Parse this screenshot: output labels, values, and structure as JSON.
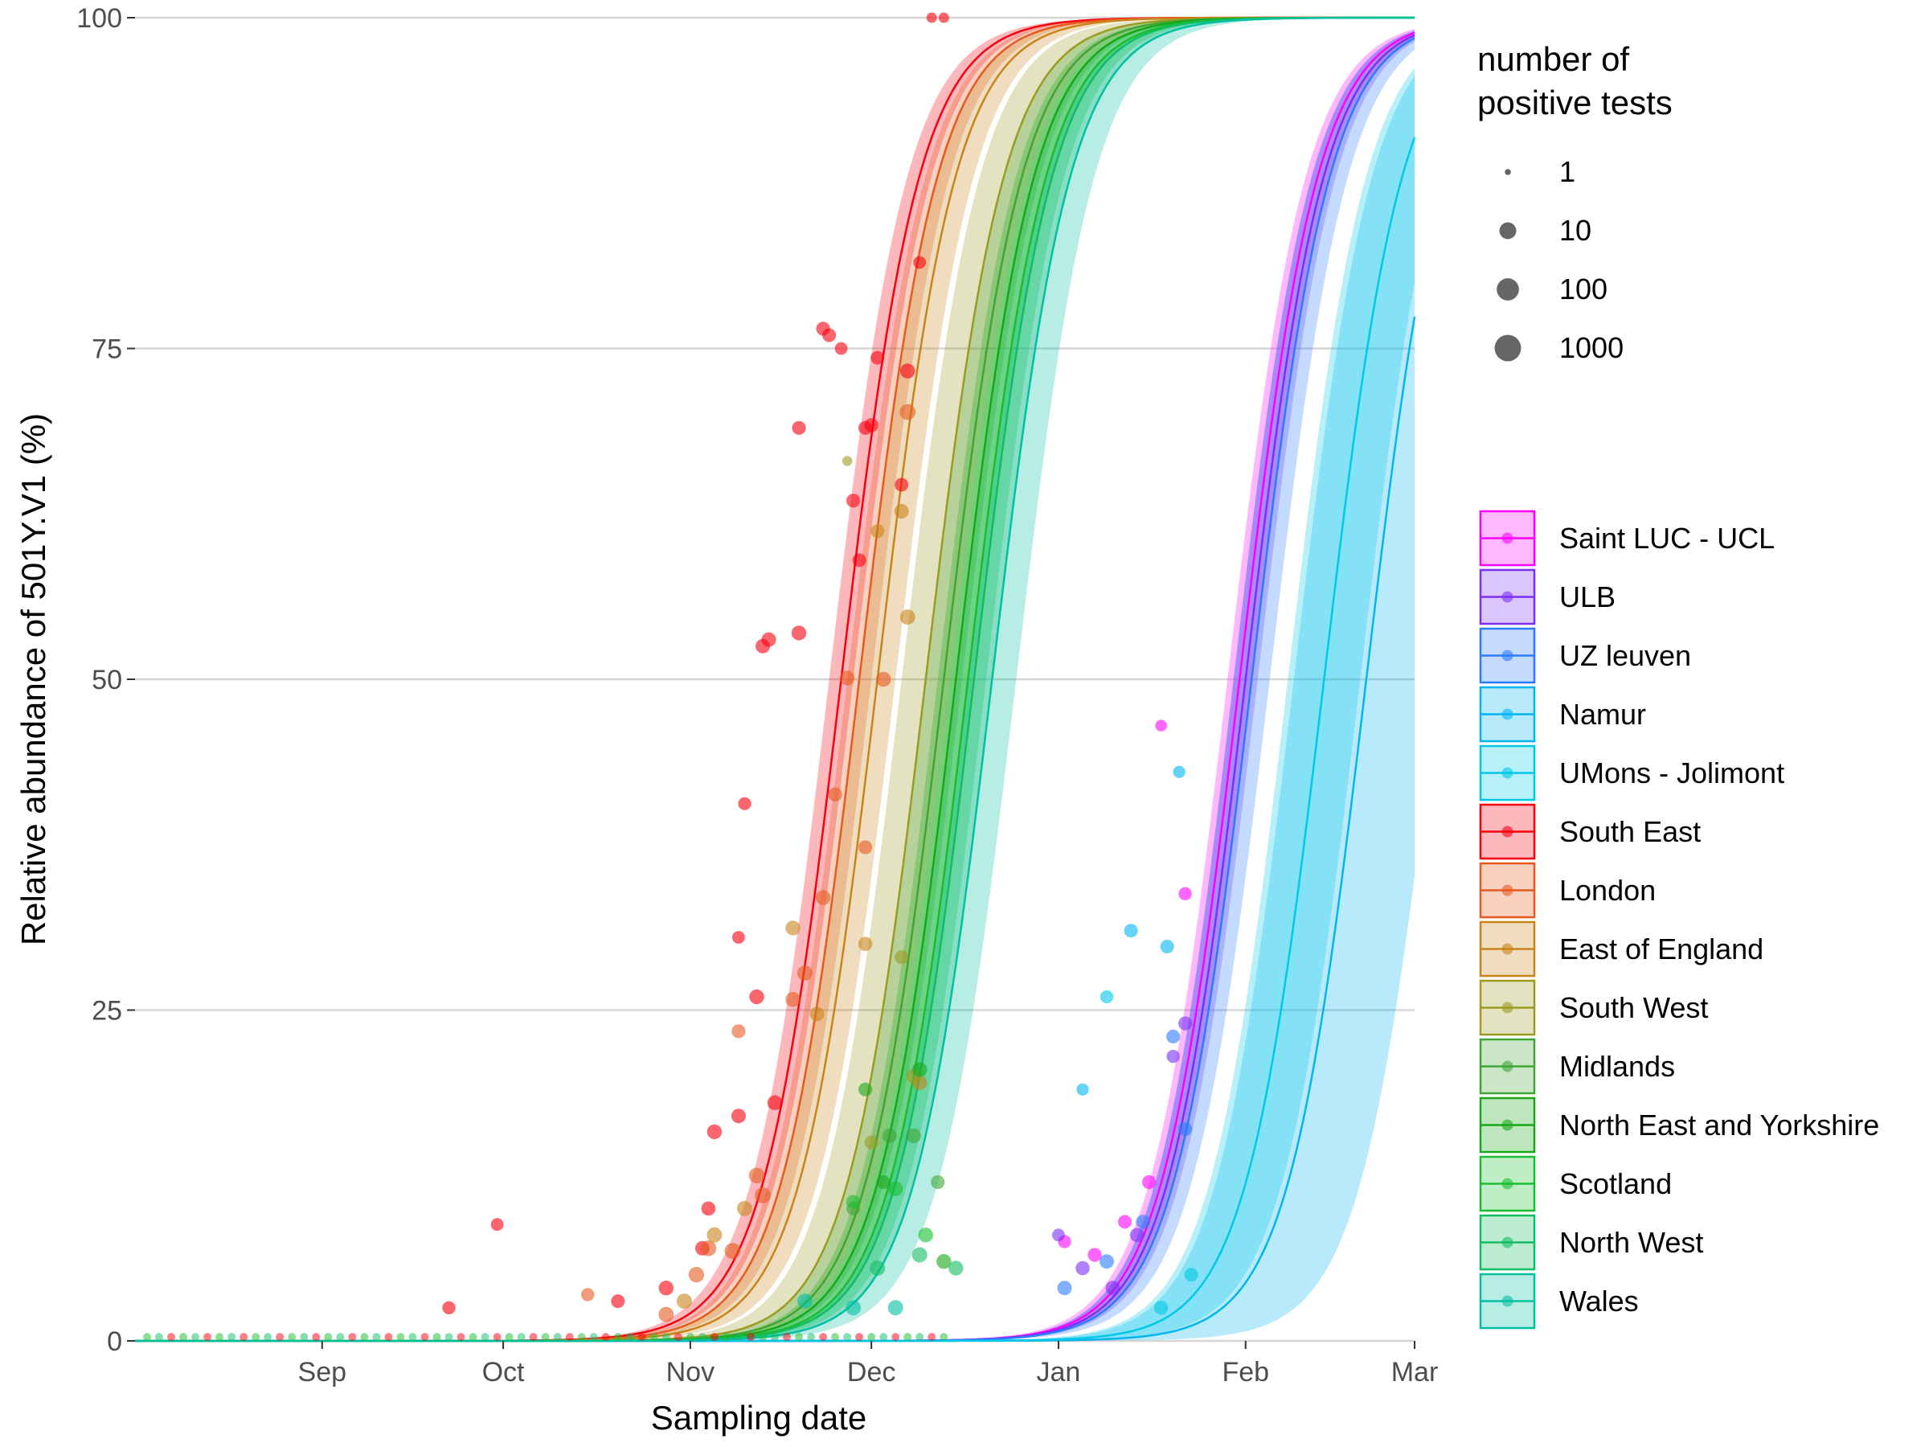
{
  "chart_data": {
    "type": "line",
    "title": "",
    "xlabel": "Sampling date",
    "ylabel": "Relative abundance of 501Y.V1 (%)",
    "x_ticks": [
      "Sep",
      "Oct",
      "Nov",
      "Dec",
      "Jan",
      "Feb",
      "Mar"
    ],
    "x_tick_dates": [
      "2020-09-01",
      "2020-10-01",
      "2020-11-01",
      "2020-12-01",
      "2021-01-01",
      "2021-02-01",
      "2021-03-01"
    ],
    "xlim": [
      "2020-08-01",
      "2021-03-01"
    ],
    "y_ticks": [
      "0",
      "25",
      "50",
      "75",
      "100"
    ],
    "ylim": [
      0,
      100
    ],
    "grid": "horizontal",
    "size_legend": {
      "title_line1": "number of",
      "title_line2": "positive tests",
      "labels": [
        "1",
        "10",
        "100",
        "1000"
      ]
    },
    "series": [
      {
        "name": "Saint LUC - UCL",
        "color": "#FF00FF",
        "midpoint_date": "2021-01-31",
        "band_days": 2
      },
      {
        "name": "ULB",
        "color": "#7B2FF7",
        "midpoint_date": "2021-02-01",
        "band_days": 2
      },
      {
        "name": "UZ leuven",
        "color": "#2C7BFF",
        "midpoint_date": "2021-02-02",
        "band_days": 3
      },
      {
        "name": "Namur",
        "color": "#00B5F0",
        "midpoint_date": "2021-02-21",
        "band_days": 12
      },
      {
        "name": "UMons - Jolimont",
        "color": "#00C8E8",
        "midpoint_date": "2021-02-14",
        "band_days": 6
      },
      {
        "name": "South East",
        "color": "#F8000D",
        "midpoint_date": "2020-11-26",
        "band_days": 2
      },
      {
        "name": "London",
        "color": "#E65A1E",
        "midpoint_date": "2020-11-29",
        "band_days": 2
      },
      {
        "name": "East of England",
        "color": "#C88418",
        "midpoint_date": "2020-12-02",
        "band_days": 3
      },
      {
        "name": "South West",
        "color": "#9C9B20",
        "midpoint_date": "2020-12-10",
        "band_days": 4
      },
      {
        "name": "Midlands",
        "color": "#3FA535",
        "midpoint_date": "2020-12-13",
        "band_days": 3
      },
      {
        "name": "North East and Yorkshire",
        "color": "#17A817",
        "midpoint_date": "2020-12-15",
        "band_days": 3
      },
      {
        "name": "Scotland",
        "color": "#19BE2E",
        "midpoint_date": "2020-12-17",
        "band_days": 3
      },
      {
        "name": "North West",
        "color": "#10BD62",
        "midpoint_date": "2020-12-18",
        "band_days": 3
      },
      {
        "name": "Wales",
        "color": "#00C0A0",
        "midpoint_date": "2020-12-21",
        "band_days": 4
      }
    ],
    "points": [
      {
        "series": "South East",
        "date": "2020-09-22",
        "y": 2.5,
        "n": 60
      },
      {
        "series": "South East",
        "date": "2020-09-30",
        "y": 8.8,
        "n": 40
      },
      {
        "series": "South East",
        "date": "2020-10-20",
        "y": 3.0,
        "n": 80
      },
      {
        "series": "South East",
        "date": "2020-10-28",
        "y": 4.0,
        "n": 200
      },
      {
        "series": "South East",
        "date": "2020-11-03",
        "y": 7.0,
        "n": 150
      },
      {
        "series": "South East",
        "date": "2020-11-04",
        "y": 10.0,
        "n": 120
      },
      {
        "series": "South East",
        "date": "2020-11-05",
        "y": 15.8,
        "n": 220
      },
      {
        "series": "South East",
        "date": "2020-11-09",
        "y": 17.0,
        "n": 150
      },
      {
        "series": "South East",
        "date": "2020-11-09",
        "y": 30.5,
        "n": 40
      },
      {
        "series": "South East",
        "date": "2020-11-10",
        "y": 40.6,
        "n": 50
      },
      {
        "series": "South East",
        "date": "2020-11-12",
        "y": 26.0,
        "n": 200
      },
      {
        "series": "South East",
        "date": "2020-11-13",
        "y": 52.5,
        "n": 150
      },
      {
        "series": "South East",
        "date": "2020-11-14",
        "y": 53.0,
        "n": 160
      },
      {
        "series": "South East",
        "date": "2020-11-15",
        "y": 18.0,
        "n": 220
      },
      {
        "series": "South East",
        "date": "2020-11-19",
        "y": 53.5,
        "n": 200
      },
      {
        "series": "South East",
        "date": "2020-11-19",
        "y": 69.0,
        "n": 100
      },
      {
        "series": "South East",
        "date": "2020-11-23",
        "y": 76.5,
        "n": 100
      },
      {
        "series": "South East",
        "date": "2020-11-24",
        "y": 76.0,
        "n": 80
      },
      {
        "series": "South East",
        "date": "2020-11-26",
        "y": 75.0,
        "n": 40
      },
      {
        "series": "South East",
        "date": "2020-11-28",
        "y": 63.5,
        "n": 100
      },
      {
        "series": "South East",
        "date": "2020-11-29",
        "y": 59.0,
        "n": 80
      },
      {
        "series": "South East",
        "date": "2020-11-30",
        "y": 69.0,
        "n": 100
      },
      {
        "series": "South East",
        "date": "2020-12-01",
        "y": 69.2,
        "n": 120
      },
      {
        "series": "South East",
        "date": "2020-12-02",
        "y": 74.3,
        "n": 80
      },
      {
        "series": "South East",
        "date": "2020-12-06",
        "y": 64.7,
        "n": 80
      },
      {
        "series": "South East",
        "date": "2020-12-07",
        "y": 73.3,
        "n": 250
      },
      {
        "series": "South East",
        "date": "2020-12-09",
        "y": 81.5,
        "n": 40
      },
      {
        "series": "South East",
        "date": "2020-12-11",
        "y": 100.0,
        "n": 10
      },
      {
        "series": "South East",
        "date": "2020-12-13",
        "y": 100.0,
        "n": 10
      },
      {
        "series": "London",
        "date": "2020-10-15",
        "y": 3.5,
        "n": 60
      },
      {
        "series": "London",
        "date": "2020-10-28",
        "y": 2.0,
        "n": 300
      },
      {
        "series": "London",
        "date": "2020-11-02",
        "y": 5.0,
        "n": 400
      },
      {
        "series": "London",
        "date": "2020-11-04",
        "y": 7.0,
        "n": 500
      },
      {
        "series": "London",
        "date": "2020-11-08",
        "y": 6.8,
        "n": 600
      },
      {
        "series": "London",
        "date": "2020-11-09",
        "y": 23.4,
        "n": 100
      },
      {
        "series": "London",
        "date": "2020-11-12",
        "y": 12.5,
        "n": 500
      },
      {
        "series": "London",
        "date": "2020-11-13",
        "y": 11.0,
        "n": 600
      },
      {
        "series": "London",
        "date": "2020-11-18",
        "y": 25.8,
        "n": 200
      },
      {
        "series": "London",
        "date": "2020-11-20",
        "y": 27.8,
        "n": 300
      },
      {
        "series": "London",
        "date": "2020-11-23",
        "y": 33.5,
        "n": 200
      },
      {
        "series": "London",
        "date": "2020-11-25",
        "y": 41.3,
        "n": 120
      },
      {
        "series": "London",
        "date": "2020-11-27",
        "y": 50.1,
        "n": 200
      },
      {
        "series": "London",
        "date": "2020-11-30",
        "y": 37.3,
        "n": 100
      },
      {
        "series": "London",
        "date": "2020-12-03",
        "y": 50.0,
        "n": 250
      },
      {
        "series": "London",
        "date": "2020-12-07",
        "y": 70.2,
        "n": 600
      },
      {
        "series": "East of England",
        "date": "2020-10-31",
        "y": 3.0,
        "n": 300
      },
      {
        "series": "East of England",
        "date": "2020-11-05",
        "y": 8.0,
        "n": 300
      },
      {
        "series": "East of England",
        "date": "2020-11-10",
        "y": 10.0,
        "n": 300
      },
      {
        "series": "East of England",
        "date": "2020-11-18",
        "y": 31.2,
        "n": 200
      },
      {
        "series": "East of England",
        "date": "2020-11-22",
        "y": 24.7,
        "n": 150
      },
      {
        "series": "East of England",
        "date": "2020-11-30",
        "y": 30.0,
        "n": 120
      },
      {
        "series": "East of England",
        "date": "2020-12-02",
        "y": 61.2,
        "n": 100
      },
      {
        "series": "East of England",
        "date": "2020-12-06",
        "y": 62.7,
        "n": 180
      },
      {
        "series": "East of England",
        "date": "2020-12-07",
        "y": 54.7,
        "n": 300
      },
      {
        "series": "East of England",
        "date": "2020-12-09",
        "y": 19.5,
        "n": 200
      },
      {
        "series": "South West",
        "date": "2020-11-27",
        "y": 66.5,
        "n": 8
      },
      {
        "series": "South West",
        "date": "2020-12-06",
        "y": 29.0,
        "n": 100
      },
      {
        "series": "South West",
        "date": "2020-12-08",
        "y": 20.0,
        "n": 200
      },
      {
        "series": "South West",
        "date": "2020-12-01",
        "y": 15.0,
        "n": 100
      },
      {
        "series": "Midlands",
        "date": "2020-11-28",
        "y": 10.0,
        "n": 100
      },
      {
        "series": "Midlands",
        "date": "2020-12-04",
        "y": 15.5,
        "n": 150
      },
      {
        "series": "Midlands",
        "date": "2020-12-08",
        "y": 15.5,
        "n": 200
      },
      {
        "series": "Midlands",
        "date": "2020-12-12",
        "y": 12.0,
        "n": 100
      },
      {
        "series": "North East and Yorkshire",
        "date": "2020-11-30",
        "y": 19.0,
        "n": 80
      },
      {
        "series": "North East and Yorkshire",
        "date": "2020-12-03",
        "y": 12.0,
        "n": 100
      },
      {
        "series": "North East and Yorkshire",
        "date": "2020-12-09",
        "y": 20.5,
        "n": 200
      },
      {
        "series": "North East and Yorkshire",
        "date": "2020-12-13",
        "y": 6.0,
        "n": 200
      },
      {
        "series": "Scotland",
        "date": "2020-11-28",
        "y": 10.5,
        "n": 100
      },
      {
        "series": "Scotland",
        "date": "2020-12-05",
        "y": 11.5,
        "n": 200
      },
      {
        "series": "Scotland",
        "date": "2020-12-10",
        "y": 8.0,
        "n": 200
      },
      {
        "series": "North West",
        "date": "2020-12-02",
        "y": 5.5,
        "n": 300
      },
      {
        "series": "North West",
        "date": "2020-12-09",
        "y": 6.5,
        "n": 300
      },
      {
        "series": "North West",
        "date": "2020-12-15",
        "y": 5.5,
        "n": 200
      },
      {
        "series": "Wales",
        "date": "2020-11-20",
        "y": 3.0,
        "n": 300
      },
      {
        "series": "Wales",
        "date": "2020-11-28",
        "y": 2.5,
        "n": 300
      },
      {
        "series": "Wales",
        "date": "2020-12-05",
        "y": 2.5,
        "n": 300
      },
      {
        "series": "Saint LUC - UCL",
        "date": "2021-01-02",
        "y": 7.5,
        "n": 50
      },
      {
        "series": "Saint LUC - UCL",
        "date": "2021-01-07",
        "y": 6.5,
        "n": 100
      },
      {
        "series": "Saint LUC - UCL",
        "date": "2021-01-12",
        "y": 9.0,
        "n": 80
      },
      {
        "series": "Saint LUC - UCL",
        "date": "2021-01-16",
        "y": 12.0,
        "n": 100
      },
      {
        "series": "Saint LUC - UCL",
        "date": "2021-01-18",
        "y": 46.5,
        "n": 20
      },
      {
        "series": "Saint LUC - UCL",
        "date": "2021-01-22",
        "y": 33.8,
        "n": 60
      },
      {
        "series": "ULB",
        "date": "2021-01-01",
        "y": 8.0,
        "n": 40
      },
      {
        "series": "ULB",
        "date": "2021-01-05",
        "y": 5.5,
        "n": 120
      },
      {
        "series": "ULB",
        "date": "2021-01-10",
        "y": 4.0,
        "n": 150
      },
      {
        "series": "ULB",
        "date": "2021-01-14",
        "y": 8.0,
        "n": 120
      },
      {
        "series": "ULB",
        "date": "2021-01-20",
        "y": 21.5,
        "n": 60
      },
      {
        "series": "ULB",
        "date": "2021-01-22",
        "y": 24.0,
        "n": 100
      },
      {
        "series": "UZ leuven",
        "date": "2021-01-02",
        "y": 4.0,
        "n": 150
      },
      {
        "series": "UZ leuven",
        "date": "2021-01-09",
        "y": 6.0,
        "n": 150
      },
      {
        "series": "UZ leuven",
        "date": "2021-01-15",
        "y": 9.0,
        "n": 120
      },
      {
        "series": "UZ leuven",
        "date": "2021-01-20",
        "y": 23.0,
        "n": 100
      },
      {
        "series": "UZ leuven",
        "date": "2021-01-22",
        "y": 16.0,
        "n": 100
      },
      {
        "series": "Namur",
        "date": "2021-01-05",
        "y": 19.0,
        "n": 30
      },
      {
        "series": "Namur",
        "date": "2021-01-13",
        "y": 31.0,
        "n": 80
      },
      {
        "series": "Namur",
        "date": "2021-01-19",
        "y": 29.8,
        "n": 80
      },
      {
        "series": "Namur",
        "date": "2021-01-21",
        "y": 43.0,
        "n": 30
      },
      {
        "series": "UMons - Jolimont",
        "date": "2021-01-09",
        "y": 26.0,
        "n": 60
      },
      {
        "series": "UMons - Jolimont",
        "date": "2021-01-18",
        "y": 2.5,
        "n": 120
      },
      {
        "series": "UMons - Jolimont",
        "date": "2021-01-23",
        "y": 5.0,
        "n": 80
      }
    ]
  }
}
